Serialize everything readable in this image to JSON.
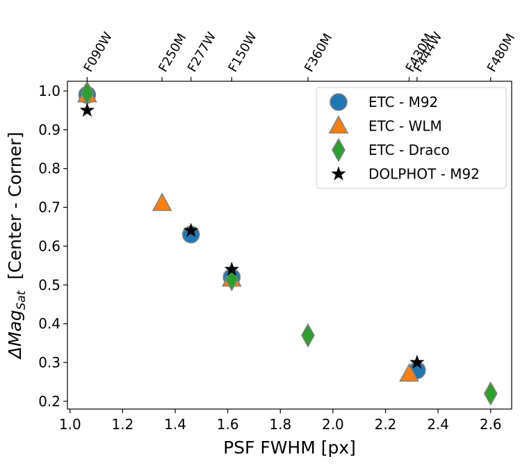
{
  "chart_data": {
    "type": "scatter",
    "title": "",
    "xlabel": "PSF FWHM [px]",
    "ylabel_main": "ΔMag",
    "ylabel_sub": "Sat",
    "ylabel_rest": "  [Center - Corner]",
    "xlim": [
      0.99,
      2.68
    ],
    "ylim": [
      0.18,
      1.025
    ],
    "xticks": [
      1.0,
      1.2,
      1.4,
      1.6,
      1.8,
      2.0,
      2.2,
      2.4,
      2.6
    ],
    "xtick_labels": [
      "1.0",
      "1.2",
      "1.4",
      "1.6",
      "1.8",
      "2.0",
      "2.2",
      "2.4",
      "2.6"
    ],
    "yticks": [
      0.2,
      0.3,
      0.4,
      0.5,
      0.6,
      0.7,
      0.8,
      0.9,
      1.0
    ],
    "ytick_labels": [
      "0.2",
      "0.3",
      "0.4",
      "0.5",
      "0.6",
      "0.7",
      "0.8",
      "0.9",
      "1.0"
    ],
    "top_axis": {
      "ticks": [
        1.065,
        1.35,
        1.46,
        1.615,
        1.905,
        2.29,
        2.32,
        2.6
      ],
      "labels": [
        "F090W",
        "F250M",
        "F277W",
        "F150W",
        "F360M",
        "F430M",
        "F444W",
        "F480M"
      ]
    },
    "legend_position": "top-right",
    "series": [
      {
        "name": "ETC - M92",
        "marker": "circle",
        "color": "#1f77b4",
        "edge": "#808080",
        "points": [
          {
            "x": 1.065,
            "y": 0.99
          },
          {
            "x": 1.46,
            "y": 0.63
          },
          {
            "x": 1.615,
            "y": 0.52
          },
          {
            "x": 2.32,
            "y": 0.28
          }
        ]
      },
      {
        "name": "ETC - WLM",
        "marker": "triangle",
        "color": "#ff7f0e",
        "edge": "#808080",
        "points": [
          {
            "x": 1.065,
            "y": 0.99
          },
          {
            "x": 1.35,
            "y": 0.71
          },
          {
            "x": 1.615,
            "y": 0.515
          },
          {
            "x": 2.29,
            "y": 0.27
          }
        ]
      },
      {
        "name": "ETC - Draco",
        "marker": "diamond",
        "color": "#2ca02c",
        "edge": "#808080",
        "points": [
          {
            "x": 1.065,
            "y": 0.995
          },
          {
            "x": 1.615,
            "y": 0.515
          },
          {
            "x": 1.905,
            "y": 0.37
          },
          {
            "x": 2.6,
            "y": 0.22
          }
        ]
      },
      {
        "name": "DOLPHOT - M92",
        "marker": "star",
        "color": "#000000",
        "edge": "#000000",
        "points": [
          {
            "x": 1.065,
            "y": 0.95
          },
          {
            "x": 1.46,
            "y": 0.64
          },
          {
            "x": 1.615,
            "y": 0.54
          },
          {
            "x": 2.32,
            "y": 0.3
          }
        ]
      }
    ]
  }
}
